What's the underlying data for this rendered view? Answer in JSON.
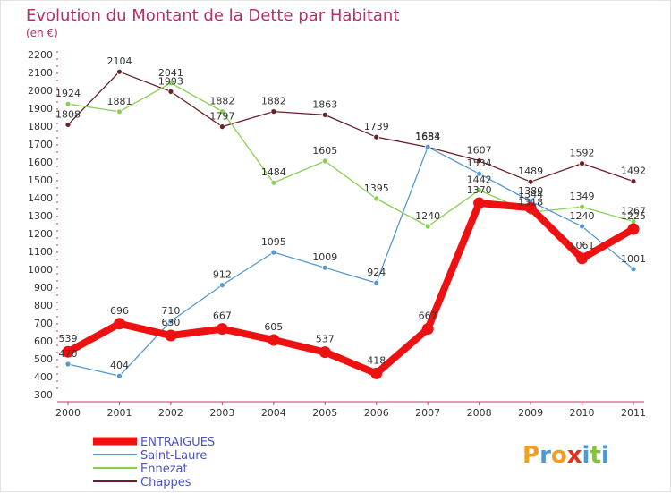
{
  "chart_data": {
    "type": "line",
    "title": "Evolution du Montant de la Dette par Habitant",
    "subtitle": "(en €)",
    "x": [
      "2000",
      "2001",
      "2002",
      "2003",
      "2004",
      "2005",
      "2006",
      "2007",
      "2008",
      "2009",
      "2010",
      "2011"
    ],
    "ylim": [
      300,
      2200
    ],
    "yticks": [
      300,
      400,
      500,
      600,
      700,
      800,
      900,
      1000,
      1100,
      1200,
      1300,
      1400,
      1500,
      1600,
      1700,
      1800,
      1900,
      2000,
      2100,
      2200
    ],
    "grid": false,
    "legend_position": "bottom-left",
    "series": [
      {
        "name": "ENTRAIGUES",
        "color": "#ee1111",
        "values": [
          539,
          696,
          630,
          667,
          605,
          537,
          418,
          667,
          1370,
          1344,
          1061,
          1225
        ]
      },
      {
        "name": "Saint-Laure",
        "color": "#5599d0",
        "values": [
          470,
          404,
          710,
          912,
          1095,
          1009,
          924,
          1684,
          1534,
          1380,
          1240,
          1001
        ]
      },
      {
        "name": "Ennezat",
        "color": "#88d050",
        "values": [
          1924,
          1881,
          2041,
          1882,
          1484,
          1605,
          1395,
          1240,
          1442,
          1318,
          1349,
          1267
        ]
      },
      {
        "name": "Chappes",
        "color": "#6b1f28",
        "values": [
          1808,
          2104,
          1993,
          1797,
          1882,
          1863,
          1739,
          1683,
          1607,
          1489,
          1592,
          1492
        ]
      }
    ]
  },
  "logo": {
    "letters": [
      "P",
      "r",
      "o",
      "x",
      "i",
      "t",
      "i"
    ],
    "colors": [
      "#f0a020",
      "#4a9ad8",
      "#f0a020",
      "#e03020",
      "#4a9ad8",
      "#88c040",
      "#4a9ad8"
    ]
  }
}
